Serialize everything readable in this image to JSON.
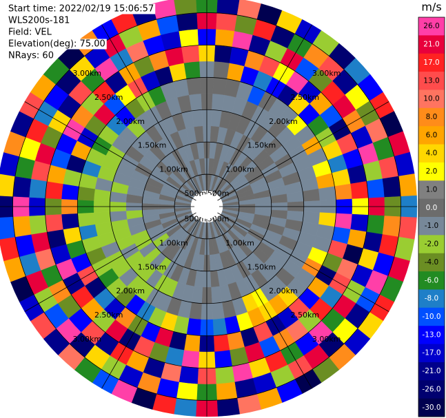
{
  "chart_data": {
    "type": "ppi",
    "header": [
      "Start time: 2022/02/19 15:06:57",
      "WLS200s-181",
      "Field: VEL",
      "Elevation(deg): 75.00",
      "NRays: 60"
    ],
    "rlim": [
      0,
      3.25
    ],
    "gate_edges_km": [
      0,
      0.25,
      0.5,
      0.75,
      1.0,
      1.25,
      1.5,
      1.75,
      2.0,
      2.25,
      2.5,
      2.75,
      3.0,
      3.25
    ],
    "range_rings": [
      {
        "value": 0.5,
        "label": "500m"
      },
      {
        "value": 1.0,
        "label": "1.00km"
      },
      {
        "value": 1.5,
        "label": "1.50km"
      },
      {
        "value": 2.0,
        "label": "2.00km"
      },
      {
        "value": 2.5,
        "label": "2.50km"
      },
      {
        "value": 3.0,
        "label": "3.00km"
      }
    ],
    "colorbar": {
      "title": "m/s",
      "ticks": [
        {
          "value": 26,
          "label": "26.0"
        },
        {
          "value": 21,
          "label": "21.0"
        },
        {
          "value": 17,
          "label": "17.0"
        },
        {
          "value": 13,
          "label": "13.0"
        },
        {
          "value": 10,
          "label": "10.0"
        },
        {
          "value": 8,
          "label": "8.0"
        },
        {
          "value": 6,
          "label": "6.0"
        },
        {
          "value": 4,
          "label": "4.0"
        },
        {
          "value": 2,
          "label": "2.0"
        },
        {
          "value": 1,
          "label": "1.0"
        },
        {
          "value": 0,
          "label": "0.0"
        },
        {
          "value": -1,
          "label": "-1.0"
        },
        {
          "value": -2,
          "label": "-2.0"
        },
        {
          "value": -4,
          "label": "-4.0"
        },
        {
          "value": -6,
          "label": "-6.0"
        },
        {
          "value": -8,
          "label": "-8.0"
        },
        {
          "value": -10,
          "label": "-10.0"
        },
        {
          "value": -13,
          "label": "-13.0"
        },
        {
          "value": -17,
          "label": "-17.0"
        },
        {
          "value": -21,
          "label": "-21.0"
        },
        {
          "value": -26,
          "label": "-26.0"
        },
        {
          "value": -30,
          "label": "-30.0"
        }
      ],
      "colors": [
        "#ff3fa8",
        "#e8003c",
        "#ff2222",
        "#ff4c4c",
        "#ff7460",
        "#ff8c1a",
        "#ffa500",
        "#ffd700",
        "#ffff00",
        "#808080",
        "#6c6c6c",
        "#778899",
        "#9acd32",
        "#6b8e23",
        "#228b22",
        "#1e7fc8",
        "#0050ff",
        "#0000ff",
        "#0000cd",
        "#00008b",
        "#000070",
        "#000050"
      ]
    },
    "rays": [
      [
        null,
        0,
        -1,
        0,
        -1,
        -1,
        0,
        0,
        -1,
        4,
        -13,
        21,
        -6
      ],
      [
        null,
        0,
        0,
        -1,
        0,
        -1,
        -1,
        0,
        0,
        -26,
        6,
        13,
        -21
      ],
      [
        null,
        -1,
        0,
        0,
        -1,
        0,
        -1,
        0,
        6,
        -17,
        26,
        -4,
        10
      ],
      [
        null,
        0,
        -1,
        -1,
        0,
        0,
        -1,
        -1,
        -13,
        8,
        -21,
        17,
        -30
      ],
      [
        null,
        -1,
        0,
        -1,
        -1,
        0,
        0,
        -10,
        -8,
        13,
        -2,
        -26,
        4
      ],
      [
        null,
        0,
        -1,
        0,
        0,
        -1,
        -1,
        0,
        -13,
        2,
        21,
        -6,
        -17
      ],
      [
        null,
        0,
        0,
        -1,
        -1,
        0,
        -1,
        -1,
        -21,
        26,
        -10,
        8,
        -2
      ],
      [
        null,
        -1,
        0,
        0,
        -1,
        -1,
        0,
        -1,
        4,
        -17,
        -4,
        13,
        -26
      ],
      [
        null,
        0,
        -1,
        -1,
        0,
        0,
        -1,
        2,
        -13,
        6,
        17,
        -21,
        -8
      ],
      [
        null,
        -1,
        -1,
        0,
        0,
        -1,
        -1,
        -1,
        -6,
        -10,
        21,
        2,
        -13
      ],
      [
        null,
        0,
        -1,
        0,
        -1,
        0,
        -1,
        6,
        -2,
        -26,
        8,
        -4,
        17
      ],
      [
        null,
        -1,
        0,
        -1,
        0,
        -1,
        -1,
        -1,
        4,
        13,
        -17,
        10,
        -30
      ],
      [
        null,
        0,
        0,
        -1,
        -1,
        0,
        -1,
        2,
        -8,
        -13,
        26,
        -6,
        21
      ],
      [
        null,
        -1,
        0,
        0,
        -1,
        -1,
        -1,
        6,
        4,
        -21,
        -2,
        13,
        -17
      ],
      [
        null,
        0,
        -1,
        -1,
        0,
        -1,
        0,
        -1,
        8,
        17,
        -10,
        -26,
        6
      ],
      [
        null,
        -1,
        0,
        -1,
        -1,
        0,
        -1,
        -1,
        -13,
        2,
        21,
        -4,
        -8
      ],
      [
        null,
        0,
        0,
        -1,
        0,
        -1,
        -1,
        4,
        26,
        -17,
        -6,
        8,
        13
      ],
      [
        null,
        -1,
        -1,
        0,
        -1,
        0,
        -1,
        -1,
        -10,
        6,
        -21,
        17,
        -2
      ],
      [
        null,
        0,
        -1,
        0,
        0,
        -1,
        -1,
        -1,
        13,
        -30,
        4,
        -13,
        21
      ],
      [
        null,
        -1,
        0,
        -1,
        -1,
        0,
        -1,
        2,
        -4,
        10,
        -17,
        26,
        -6
      ],
      [
        null,
        0,
        -1,
        0,
        -1,
        -1,
        -1,
        8,
        -26,
        13,
        -2,
        -10,
        17
      ],
      [
        null,
        -1,
        0,
        -1,
        0,
        -1,
        -1,
        -1,
        6,
        -8,
        21,
        -21,
        4
      ],
      [
        null,
        0,
        -1,
        -1,
        0,
        -1,
        0,
        -1,
        -13,
        17,
        -6,
        2,
        -17
      ],
      [
        null,
        -1,
        0,
        0,
        -1,
        -1,
        -1,
        4,
        13,
        -2,
        26,
        -26,
        8
      ],
      [
        null,
        0,
        -1,
        -1,
        -1,
        0,
        -1,
        6,
        -17,
        10,
        -13,
        21,
        -4
      ],
      [
        null,
        -1,
        0,
        -1,
        0,
        -1,
        2,
        4,
        -21,
        8,
        -6,
        13,
        -30
      ],
      [
        null,
        0,
        -1,
        0,
        -1,
        -1,
        4,
        6,
        13,
        -10,
        17,
        -2,
        -13
      ],
      [
        null,
        -1,
        -1,
        0,
        -1,
        0,
        -1,
        2,
        -26,
        21,
        4,
        -17,
        6
      ],
      [
        null,
        0,
        0,
        -1,
        -1,
        -1,
        0,
        -13,
        8,
        -4,
        26,
        -21,
        10
      ],
      [
        null,
        -1,
        0,
        -1,
        0,
        -1,
        -1,
        -8,
        17,
        -13,
        -2,
        6,
        -26
      ],
      [
        null,
        0,
        -1,
        0,
        -1,
        0,
        -1,
        -10,
        -21,
        4,
        13,
        -6,
        21
      ],
      [
        null,
        -1,
        0,
        -1,
        -1,
        -1,
        0,
        -13,
        6,
        26,
        -17,
        2,
        -8
      ],
      [
        null,
        0,
        -1,
        -1,
        0,
        -1,
        -1,
        -2,
        -26,
        -8,
        10,
        -13,
        17
      ],
      [
        null,
        -1,
        0,
        0,
        -1,
        -1,
        0,
        4,
        21,
        -4,
        -21,
        8,
        -30
      ],
      [
        null,
        0,
        -1,
        -1,
        0,
        -2,
        -1,
        -2,
        -13,
        13,
        6,
        -17,
        26
      ],
      [
        null,
        -1,
        0,
        -1,
        -1,
        -2,
        -1,
        -8,
        -4,
        -26,
        17,
        -2,
        -10
      ],
      [
        null,
        0,
        -1,
        0,
        -2,
        -1,
        -2,
        -13,
        8,
        21,
        -21,
        4,
        -6
      ],
      [
        null,
        -1,
        -1,
        0,
        -1,
        -2,
        -2,
        -4,
        -17,
        -2,
        13,
        -26,
        10
      ],
      [
        null,
        0,
        -1,
        -1,
        -2,
        -2,
        -1,
        -2,
        -8,
        6,
        -13,
        26,
        -21
      ],
      [
        null,
        -1,
        0,
        -2,
        -1,
        -2,
        -2,
        -6,
        -26,
        17,
        -4,
        -10,
        13
      ],
      [
        null,
        0,
        -1,
        -1,
        -2,
        -1,
        -2,
        -2,
        13,
        -21,
        8,
        -2,
        -17
      ],
      [
        null,
        -1,
        0,
        -1,
        -2,
        -2,
        -1,
        -4,
        -13,
        26,
        -6,
        21,
        -30
      ],
      [
        null,
        0,
        -1,
        0,
        -1,
        -2,
        -2,
        -2,
        -6,
        -17,
        10,
        -8,
        6
      ],
      [
        null,
        -1,
        0,
        -1,
        -1,
        -2,
        -2,
        -8,
        4,
        -26,
        21,
        -13,
        17
      ],
      [
        null,
        0,
        -1,
        -1,
        -2,
        -1,
        -2,
        -2,
        -21,
        13,
        -2,
        6,
        -10
      ],
      [
        null,
        -1,
        0,
        0,
        -1,
        -2,
        -2,
        -6,
        8,
        -4,
        -17,
        26,
        -26
      ],
      [
        null,
        0,
        -1,
        -1,
        0,
        -1,
        -2,
        -4,
        -13,
        17,
        -8,
        -21,
        4
      ],
      [
        null,
        -1,
        0,
        -1,
        -1,
        -2,
        -1,
        -2,
        -2,
        6,
        13,
        -6,
        -17
      ],
      [
        null,
        0,
        -1,
        0,
        -1,
        -1,
        -2,
        -8,
        -26,
        -10,
        21,
        2,
        8
      ],
      [
        null,
        -1,
        -1,
        0,
        -1,
        -1,
        -2,
        -2,
        6,
        -13,
        -4,
        17,
        -21
      ],
      [
        null,
        0,
        -1,
        -1,
        0,
        -1,
        -2,
        -6,
        -17,
        26,
        4,
        -8,
        13
      ],
      [
        null,
        -1,
        0,
        -1,
        -1,
        0,
        -1,
        -2,
        -4,
        8,
        -21,
        -13,
        6
      ],
      [
        null,
        0,
        -1,
        0,
        -1,
        -1,
        -1,
        -8,
        21,
        -2,
        13,
        -26,
        -6
      ],
      [
        null,
        -1,
        0,
        -1,
        0,
        -1,
        -2,
        -13,
        -10,
        17,
        -6,
        4,
        -30
      ],
      [
        null,
        0,
        -1,
        -1,
        -1,
        0,
        -1,
        -4,
        2,
        -21,
        26,
        -17,
        8
      ],
      [
        null,
        -1,
        0,
        0,
        -1,
        -1,
        -1,
        -2,
        13,
        6,
        -8,
        21,
        -13
      ],
      [
        null,
        0,
        -1,
        -1,
        0,
        -1,
        0,
        -6,
        -17,
        -4,
        10,
        -2,
        17
      ],
      [
        null,
        -1,
        0,
        -1,
        -1,
        0,
        -1,
        -1,
        -26,
        8,
        -13,
        6,
        -21
      ],
      [
        null,
        0,
        -1,
        0,
        -1,
        -1,
        0,
        -1,
        4,
        21,
        -17,
        -10,
        26
      ],
      [
        null,
        -1,
        0,
        -1,
        0,
        -1,
        -1,
        0,
        -6,
        13,
        2,
        -26,
        -4
      ]
    ]
  }
}
